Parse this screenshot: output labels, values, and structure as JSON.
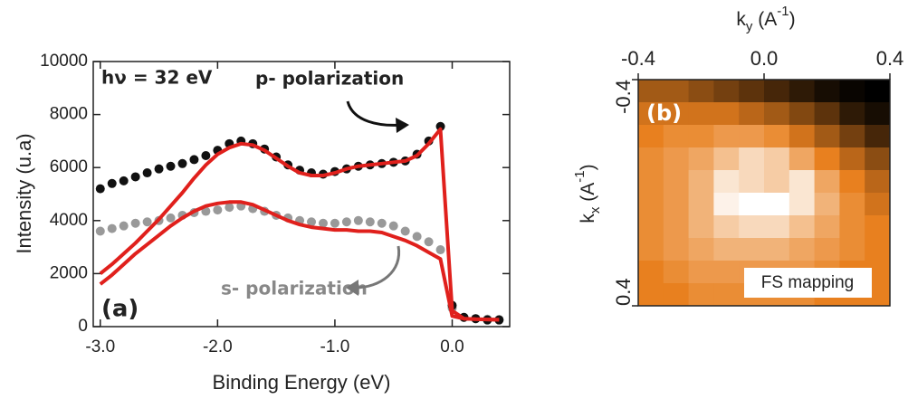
{
  "chart_data": [
    {
      "type": "scatter",
      "x_label": "Binding Energy (eV)",
      "y_label": "Intensity (u.a)",
      "panel_label": "(a)",
      "annotation": "hν = 32 eV",
      "x": [
        -3.0,
        -2.9,
        -2.8,
        -2.7,
        -2.6,
        -2.5,
        -2.4,
        -2.3,
        -2.2,
        -2.1,
        -2.0,
        -1.9,
        -1.8,
        -1.7,
        -1.6,
        -1.5,
        -1.4,
        -1.3,
        -1.2,
        -1.1,
        -1.0,
        -0.9,
        -0.8,
        -0.7,
        -0.6,
        -0.5,
        -0.4,
        -0.3,
        -0.2,
        -0.1,
        0.0,
        0.1,
        0.2,
        0.3,
        0.4
      ],
      "series": [
        {
          "name": "p- polarization",
          "color": "#111111",
          "values": [
            5200,
            5400,
            5500,
            5650,
            5800,
            5950,
            6050,
            6150,
            6300,
            6450,
            6650,
            6900,
            7000,
            6900,
            6700,
            6400,
            6100,
            5900,
            5800,
            5750,
            5850,
            5950,
            6050,
            6100,
            6150,
            6200,
            6250,
            6500,
            7000,
            7550,
            800,
            350,
            300,
            250,
            250
          ]
        },
        {
          "name": "s- polarization",
          "color": "#999999",
          "values": [
            3600,
            3700,
            3800,
            3900,
            3950,
            4000,
            4100,
            4200,
            4300,
            4350,
            4400,
            4500,
            4550,
            4450,
            4350,
            4200,
            4100,
            4000,
            3950,
            3900,
            3900,
            3950,
            4000,
            3950,
            3900,
            3800,
            3600,
            3400,
            3200,
            2900,
            700,
            350,
            300,
            280,
            270
          ]
        }
      ],
      "fits": [
        {
          "color": "#e0201c",
          "values": [
            2000,
            2350,
            2750,
            3150,
            3600,
            4050,
            4550,
            5050,
            5600,
            6100,
            6500,
            6750,
            6900,
            6850,
            6650,
            6350,
            6050,
            5800,
            5700,
            5700,
            5800,
            5950,
            6050,
            6100,
            6150,
            6200,
            6250,
            6450,
            6900,
            7450,
            600,
            300,
            280,
            270,
            260
          ]
        },
        {
          "color": "#e0201c",
          "values": [
            1600,
            1950,
            2350,
            2750,
            3100,
            3450,
            3800,
            4100,
            4350,
            4550,
            4650,
            4700,
            4700,
            4600,
            4400,
            4200,
            4000,
            3850,
            3750,
            3700,
            3650,
            3650,
            3600,
            3600,
            3550,
            3400,
            3250,
            3050,
            2800,
            2550,
            400,
            300,
            280,
            270,
            260
          ]
        }
      ],
      "xlim": [
        -3.06,
        0.49
      ],
      "ylim": [
        0,
        10000
      ],
      "xticks": [
        {
          "value": -3,
          "label": "-3.0"
        },
        {
          "value": -2,
          "label": "-2.0"
        },
        {
          "value": -1,
          "label": "-1.0"
        },
        {
          "value": 0,
          "label": "0.0"
        }
      ],
      "yticks": [
        0,
        2000,
        4000,
        6000,
        8000,
        10000
      ]
    },
    {
      "type": "heatmap",
      "x_label": [
        "k",
        "y",
        " (A",
        "-1",
        ")"
      ],
      "y_label": [
        "k",
        "x",
        " (A",
        "-1",
        ")"
      ],
      "panel_label": "(b)",
      "annotation": "FS mapping",
      "xlim": [
        -0.4,
        0.4
      ],
      "ylim": [
        -0.4,
        0.4
      ],
      "xticks": [
        -0.4,
        {
          "value": 0,
          "label": "0.0"
        },
        0.4
      ],
      "yticks": [
        -0.4,
        0.4
      ],
      "colormap": [
        "#000000",
        "#e8801f",
        "#ffffff"
      ],
      "z": [
        [
          0.35,
          0.35,
          0.3,
          0.25,
          0.2,
          0.15,
          0.1,
          0.05,
          0.02,
          0.0
        ],
        [
          0.45,
          0.45,
          0.45,
          0.45,
          0.4,
          0.35,
          0.28,
          0.2,
          0.1,
          0.05
        ],
        [
          0.5,
          0.55,
          0.55,
          0.6,
          0.6,
          0.55,
          0.45,
          0.35,
          0.25,
          0.15
        ],
        [
          0.55,
          0.6,
          0.65,
          0.75,
          0.85,
          0.8,
          0.65,
          0.5,
          0.4,
          0.3
        ],
        [
          0.55,
          0.6,
          0.7,
          0.9,
          0.85,
          0.8,
          0.9,
          0.65,
          0.5,
          0.4
        ],
        [
          0.55,
          0.6,
          0.7,
          0.95,
          1.0,
          1.0,
          0.9,
          0.7,
          0.55,
          0.45
        ],
        [
          0.55,
          0.6,
          0.7,
          0.8,
          0.85,
          0.85,
          0.75,
          0.65,
          0.55,
          0.5
        ],
        [
          0.55,
          0.6,
          0.65,
          0.7,
          0.7,
          0.7,
          0.65,
          0.6,
          0.55,
          0.5
        ],
        [
          0.5,
          0.55,
          0.6,
          0.6,
          0.6,
          0.6,
          0.6,
          0.55,
          0.5,
          0.5
        ],
        [
          0.5,
          0.5,
          0.55,
          0.55,
          0.55,
          0.55,
          0.55,
          0.5,
          0.5,
          0.5
        ]
      ]
    }
  ]
}
